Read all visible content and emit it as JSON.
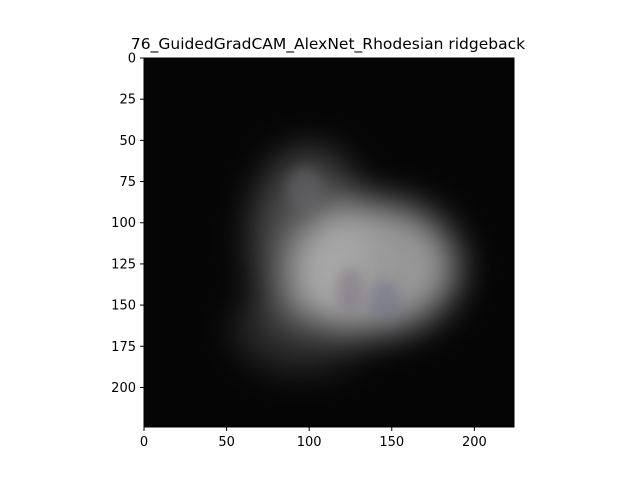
{
  "chart_data": {
    "type": "heatmap",
    "title": "76_GuidedGradCAM_AlexNet_Rhodesian ridgeback",
    "xlabel": "",
    "ylabel": "",
    "xlim": [
      0,
      224
    ],
    "ylim": [
      224,
      0
    ],
    "x_ticks": [
      0,
      50,
      100,
      150,
      200
    ],
    "y_ticks": [
      0,
      25,
      50,
      75,
      100,
      125,
      150,
      175,
      200
    ],
    "grid": false,
    "background_color": "#050505",
    "highlight_color": "#c8c8c8",
    "heat_regions": [
      {
        "cx": 138,
        "cy": 127,
        "rx": 52,
        "ry": 40,
        "intensity": 0.75
      },
      {
        "cx": 100,
        "cy": 110,
        "rx": 35,
        "ry": 55,
        "intensity": 0.35
      },
      {
        "cx": 95,
        "cy": 165,
        "rx": 40,
        "ry": 25,
        "intensity": 0.2
      }
    ]
  }
}
